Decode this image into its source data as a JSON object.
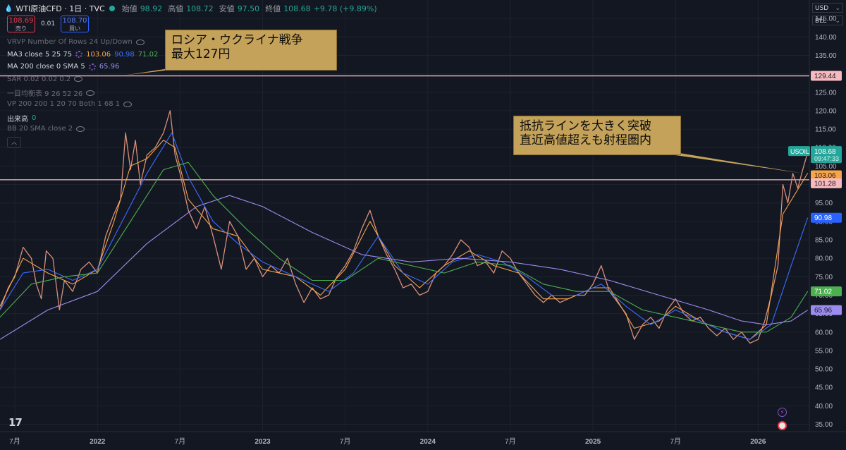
{
  "header": {
    "symbol": "WTI原油CFD · 1日 · TVC",
    "open_label": "始値",
    "open_value": "98.92",
    "high_label": "高値",
    "high_value": "108.72",
    "low_label": "安値",
    "low_value": "97.50",
    "close_label": "終値",
    "close_value": "108.68",
    "change": "+9.78 (+9.89%)"
  },
  "trade": {
    "sell_price": "108.69",
    "sell_label": "売り",
    "spread": "0.01",
    "buy_price": "108.70",
    "buy_label": "買い"
  },
  "indicators": [
    {
      "label": "VRVP Number Of Rows 24 Up/Down",
      "values": [],
      "dim": true
    },
    {
      "label": "MA3 close 5 25 75",
      "values": [
        {
          "text": "103.06",
          "color": "#f7a44a"
        },
        {
          "text": "90.98",
          "color": "#3b6cff"
        },
        {
          "text": "71.02",
          "color": "#4caf50"
        }
      ],
      "dim": false
    },
    {
      "label": "MA 200 close 0 SMA 5",
      "values": [
        {
          "text": "65.96",
          "color": "#9c8cf0"
        }
      ],
      "dim": false
    },
    {
      "label": "SAR 0.02 0.02 0.2",
      "values": [],
      "dim": true
    },
    {
      "label": "一目均衡表 9 26 52 26",
      "values": [],
      "dim": true
    },
    {
      "label": "VP 200 200 1 20 70 Both 1 68 1",
      "values": [],
      "dim": true
    },
    {
      "label": "出来高",
      "values": [
        {
          "text": "0",
          "color": "#26a69a"
        }
      ],
      "dim": false
    },
    {
      "label": "BB 20 SMA close 2",
      "values": [],
      "dim": true
    }
  ],
  "units": {
    "currency": "USD",
    "unit": "BLL"
  },
  "callouts": {
    "top_line1": "ロシア・ウクライナ戦争",
    "top_line2": "最大127円",
    "right_line1": "抵抗ラインを大きく突破",
    "right_line2": "直近高値超えも射程圏内"
  },
  "price_tags": {
    "level_high": {
      "value": "129.44",
      "color": "#f6b9c0"
    },
    "last": {
      "symbol": "USOIL",
      "value": "108.68",
      "time": "09:47:33",
      "color": "#26a69a"
    },
    "ma5": {
      "value": "103.06",
      "color": "#f7a44a"
    },
    "level_low": {
      "value": "101.28",
      "color": "#f6b9c0"
    },
    "ma25": {
      "value": "90.98",
      "color": "#2962ff"
    },
    "ma75": {
      "value": "71.02",
      "color": "#4caf50"
    },
    "ma200": {
      "value": "65.96",
      "color": "#9c8cf0"
    }
  },
  "tv_logo": "17",
  "chart_data": {
    "type": "line",
    "y_axis_ticks": [
      35,
      40,
      45,
      50,
      55,
      60,
      65,
      70,
      75,
      80,
      85,
      90,
      95,
      100,
      105,
      110,
      115,
      120,
      125,
      130,
      135,
      140,
      145
    ],
    "y_tick_labels": [
      "35.00",
      "40.00",
      "45.00",
      "50.00",
      "55.00",
      "60.00",
      "65.00",
      "70.00",
      "75.00",
      "80.00",
      "85.00",
      "90.00",
      "95.00",
      "100.00",
      "105.00",
      "110.00",
      "115.00",
      "120.00",
      "125.00",
      "130.00",
      "135.00",
      "140.00",
      "145.00"
    ],
    "ylim": [
      33,
      150
    ],
    "x_axis_ticks": [
      {
        "label": "7月",
        "t": 0.5
      },
      {
        "label": "2022",
        "t": 1.0
      },
      {
        "label": "7月",
        "t": 1.5
      },
      {
        "label": "2023",
        "t": 2.0
      },
      {
        "label": "7月",
        "t": 2.5
      },
      {
        "label": "2024",
        "t": 3.0
      },
      {
        "label": "7月",
        "t": 3.5
      },
      {
        "label": "2025",
        "t": 4.0
      },
      {
        "label": "7月",
        "t": 4.5
      },
      {
        "label": "2026",
        "t": 5.0
      }
    ],
    "xlim": [
      0.41,
      5.31
    ],
    "horizontal_levels": [
      129.44,
      101.28
    ],
    "series": [
      {
        "name": "WTI",
        "color": "#d98f7a",
        "points": [
          [
            0.41,
            66
          ],
          [
            0.46,
            72
          ],
          [
            0.5,
            75
          ],
          [
            0.55,
            83
          ],
          [
            0.6,
            80
          ],
          [
            0.63,
            73
          ],
          [
            0.66,
            69
          ],
          [
            0.69,
            82
          ],
          [
            0.73,
            80
          ],
          [
            0.77,
            66
          ],
          [
            0.8,
            74
          ],
          [
            0.85,
            71
          ],
          [
            0.9,
            77
          ],
          [
            0.95,
            79
          ],
          [
            1.0,
            76
          ],
          [
            1.05,
            86
          ],
          [
            1.1,
            92
          ],
          [
            1.14,
            96
          ],
          [
            1.17,
            114
          ],
          [
            1.2,
            104
          ],
          [
            1.23,
            112
          ],
          [
            1.26,
            100
          ],
          [
            1.3,
            108
          ],
          [
            1.35,
            110
          ],
          [
            1.4,
            114
          ],
          [
            1.44,
            120
          ],
          [
            1.47,
            108
          ],
          [
            1.5,
            103
          ],
          [
            1.55,
            93
          ],
          [
            1.6,
            88
          ],
          [
            1.65,
            94
          ],
          [
            1.7,
            86
          ],
          [
            1.75,
            77
          ],
          [
            1.8,
            90
          ],
          [
            1.85,
            86
          ],
          [
            1.9,
            77
          ],
          [
            1.95,
            80
          ],
          [
            2.0,
            75
          ],
          [
            2.05,
            78
          ],
          [
            2.1,
            76
          ],
          [
            2.15,
            80
          ],
          [
            2.2,
            73
          ],
          [
            2.25,
            68
          ],
          [
            2.3,
            72
          ],
          [
            2.35,
            69
          ],
          [
            2.4,
            70
          ],
          [
            2.45,
            75
          ],
          [
            2.5,
            78
          ],
          [
            2.55,
            82
          ],
          [
            2.6,
            88
          ],
          [
            2.65,
            93
          ],
          [
            2.7,
            86
          ],
          [
            2.75,
            81
          ],
          [
            2.8,
            77
          ],
          [
            2.85,
            72
          ],
          [
            2.9,
            73
          ],
          [
            2.95,
            70
          ],
          [
            3.0,
            71
          ],
          [
            3.05,
            76
          ],
          [
            3.1,
            78
          ],
          [
            3.15,
            81
          ],
          [
            3.2,
            85
          ],
          [
            3.25,
            83
          ],
          [
            3.3,
            78
          ],
          [
            3.35,
            79
          ],
          [
            3.4,
            76
          ],
          [
            3.45,
            82
          ],
          [
            3.5,
            80
          ],
          [
            3.55,
            76
          ],
          [
            3.6,
            73
          ],
          [
            3.65,
            70
          ],
          [
            3.7,
            68
          ],
          [
            3.75,
            70
          ],
          [
            3.8,
            68
          ],
          [
            3.85,
            69
          ],
          [
            3.9,
            70
          ],
          [
            3.95,
            70
          ],
          [
            4.0,
            73
          ],
          [
            4.05,
            78
          ],
          [
            4.1,
            71
          ],
          [
            4.15,
            68
          ],
          [
            4.2,
            65
          ],
          [
            4.25,
            58
          ],
          [
            4.3,
            62
          ],
          [
            4.35,
            64
          ],
          [
            4.4,
            61
          ],
          [
            4.45,
            66
          ],
          [
            4.5,
            69
          ],
          [
            4.55,
            65
          ],
          [
            4.6,
            63
          ],
          [
            4.65,
            64
          ],
          [
            4.7,
            61
          ],
          [
            4.75,
            59
          ],
          [
            4.8,
            61
          ],
          [
            4.85,
            58
          ],
          [
            4.9,
            60
          ],
          [
            4.95,
            57
          ],
          [
            5.0,
            58
          ],
          [
            5.04,
            63
          ],
          [
            5.08,
            70
          ],
          [
            5.12,
            78
          ],
          [
            5.15,
            100
          ],
          [
            5.18,
            95
          ],
          [
            5.21,
            103
          ],
          [
            5.24,
            99
          ],
          [
            5.27,
            104
          ],
          [
            5.3,
            108.68
          ]
        ]
      },
      {
        "name": "MA5",
        "color": "#f7a44a",
        "points": [
          [
            0.41,
            67
          ],
          [
            0.55,
            80
          ],
          [
            0.7,
            76
          ],
          [
            0.85,
            73
          ],
          [
            1.0,
            77
          ],
          [
            1.1,
            90
          ],
          [
            1.2,
            105
          ],
          [
            1.3,
            107
          ],
          [
            1.4,
            112
          ],
          [
            1.47,
            110
          ],
          [
            1.55,
            96
          ],
          [
            1.7,
            88
          ],
          [
            1.85,
            86
          ],
          [
            2.0,
            77
          ],
          [
            2.2,
            75
          ],
          [
            2.35,
            70
          ],
          [
            2.5,
            77
          ],
          [
            2.65,
            90
          ],
          [
            2.8,
            78
          ],
          [
            2.95,
            72
          ],
          [
            3.1,
            78
          ],
          [
            3.25,
            82
          ],
          [
            3.4,
            78
          ],
          [
            3.55,
            76
          ],
          [
            3.7,
            69
          ],
          [
            3.85,
            69
          ],
          [
            4.0,
            72
          ],
          [
            4.1,
            72
          ],
          [
            4.25,
            61
          ],
          [
            4.4,
            63
          ],
          [
            4.5,
            67
          ],
          [
            4.65,
            63
          ],
          [
            4.8,
            60
          ],
          [
            4.95,
            58
          ],
          [
            5.05,
            62
          ],
          [
            5.15,
            92
          ],
          [
            5.3,
            103.06
          ]
        ]
      },
      {
        "name": "MA25",
        "color": "#3b6cff",
        "points": [
          [
            0.41,
            66
          ],
          [
            0.55,
            76
          ],
          [
            0.7,
            77
          ],
          [
            0.85,
            74
          ],
          [
            1.0,
            77
          ],
          [
            1.15,
            90
          ],
          [
            1.3,
            103
          ],
          [
            1.45,
            114
          ],
          [
            1.55,
            102
          ],
          [
            1.7,
            90
          ],
          [
            1.85,
            84
          ],
          [
            2.0,
            79
          ],
          [
            2.2,
            75
          ],
          [
            2.4,
            71
          ],
          [
            2.55,
            76
          ],
          [
            2.7,
            86
          ],
          [
            2.85,
            76
          ],
          [
            3.0,
            73
          ],
          [
            3.15,
            79
          ],
          [
            3.3,
            81
          ],
          [
            3.45,
            79
          ],
          [
            3.6,
            75
          ],
          [
            3.75,
            70
          ],
          [
            3.9,
            70
          ],
          [
            4.05,
            73
          ],
          [
            4.2,
            67
          ],
          [
            4.35,
            62
          ],
          [
            4.5,
            66
          ],
          [
            4.65,
            63
          ],
          [
            4.8,
            60
          ],
          [
            4.95,
            58
          ],
          [
            5.08,
            62
          ],
          [
            5.2,
            78
          ],
          [
            5.3,
            90.98
          ]
        ]
      },
      {
        "name": "MA75",
        "color": "#4caf50",
        "points": [
          [
            0.41,
            64
          ],
          [
            0.6,
            73
          ],
          [
            0.8,
            75
          ],
          [
            1.0,
            76
          ],
          [
            1.2,
            90
          ],
          [
            1.4,
            104
          ],
          [
            1.55,
            106
          ],
          [
            1.7,
            97
          ],
          [
            1.9,
            88
          ],
          [
            2.1,
            80
          ],
          [
            2.3,
            74
          ],
          [
            2.5,
            74
          ],
          [
            2.7,
            80
          ],
          [
            2.9,
            78
          ],
          [
            3.1,
            76
          ],
          [
            3.3,
            79
          ],
          [
            3.5,
            78
          ],
          [
            3.7,
            73
          ],
          [
            3.9,
            71
          ],
          [
            4.1,
            71
          ],
          [
            4.3,
            66
          ],
          [
            4.5,
            64
          ],
          [
            4.7,
            62
          ],
          [
            4.9,
            60
          ],
          [
            5.05,
            60
          ],
          [
            5.2,
            64
          ],
          [
            5.3,
            71.02
          ]
        ]
      },
      {
        "name": "MA200",
        "color": "#9c8cf0",
        "points": [
          [
            0.41,
            58
          ],
          [
            0.7,
            66
          ],
          [
            1.0,
            71
          ],
          [
            1.3,
            84
          ],
          [
            1.6,
            94
          ],
          [
            1.8,
            97
          ],
          [
            2.0,
            94
          ],
          [
            2.3,
            87
          ],
          [
            2.6,
            81
          ],
          [
            2.9,
            79
          ],
          [
            3.2,
            80
          ],
          [
            3.5,
            79
          ],
          [
            3.8,
            77
          ],
          [
            4.1,
            74
          ],
          [
            4.4,
            70
          ],
          [
            4.7,
            66
          ],
          [
            4.9,
            63
          ],
          [
            5.05,
            62
          ],
          [
            5.2,
            63
          ],
          [
            5.3,
            65.96
          ]
        ]
      }
    ]
  }
}
